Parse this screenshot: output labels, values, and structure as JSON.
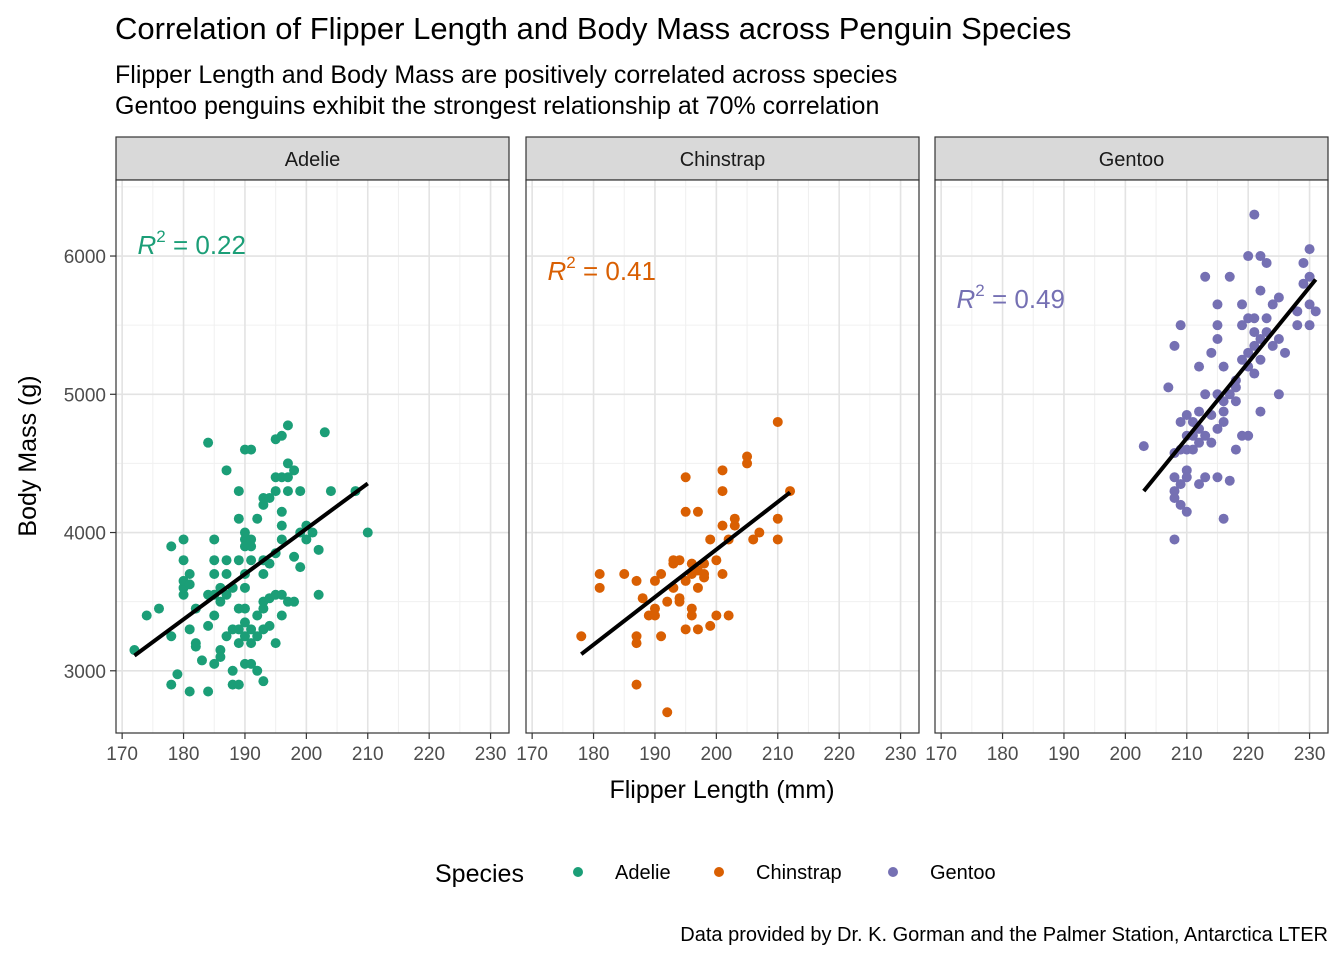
{
  "title": "Correlation of Flipper Length and Body Mass across Penguin Species",
  "subtitle_lines": [
    "Flipper Length and Body Mass are positively correlated across species",
    "Gentoo penguins exhibit the strongest relationship at 70% correlation"
  ],
  "caption": "Data provided by Dr. K. Gorman and the Palmer Station, Antarctica LTER",
  "chart_data": {
    "type": "scatter",
    "xlabel": "Flipper Length (mm)",
    "ylabel": "Body Mass (g)",
    "xlim": [
      169,
      233
    ],
    "ylim": [
      2550,
      6550
    ],
    "xticks": [
      170,
      180,
      190,
      200,
      210,
      220,
      230
    ],
    "yticks": [
      3000,
      4000,
      5000,
      6000
    ],
    "grid": true,
    "legend": {
      "title": "Species",
      "position": "bottom"
    },
    "facets": [
      {
        "name": "Adelie",
        "color": "#1b9e77",
        "r2_label": "R",
        "r2_value": " = 0.22",
        "r2_anchor": [
          172.5,
          6080
        ],
        "fit": {
          "x": [
            172,
            210
          ],
          "y": [
            3110,
            4355
          ]
        },
        "points": [
          [
            172,
            3150
          ],
          [
            174,
            3400
          ],
          [
            176,
            3450
          ],
          [
            178,
            3250
          ],
          [
            178,
            2900
          ],
          [
            178,
            3900
          ],
          [
            179,
            2975
          ],
          [
            180,
            3550
          ],
          [
            180,
            3600
          ],
          [
            180,
            3800
          ],
          [
            180,
            3950
          ],
          [
            180,
            3650
          ],
          [
            181,
            2850
          ],
          [
            181,
            3300
          ],
          [
            181,
            3625
          ],
          [
            181,
            3700
          ],
          [
            182,
            3200
          ],
          [
            182,
            3175
          ],
          [
            182,
            3450
          ],
          [
            183,
            3075
          ],
          [
            184,
            3325
          ],
          [
            184,
            3550
          ],
          [
            184,
            4650
          ],
          [
            184,
            2850
          ],
          [
            185,
            3400
          ],
          [
            185,
            3550
          ],
          [
            185,
            3700
          ],
          [
            185,
            3800
          ],
          [
            185,
            3950
          ],
          [
            185,
            3050
          ],
          [
            186,
            3150
          ],
          [
            186,
            3600
          ],
          [
            186,
            3500
          ],
          [
            186,
            3100
          ],
          [
            187,
            4450
          ],
          [
            187,
            3250
          ],
          [
            187,
            3700
          ],
          [
            187,
            3800
          ],
          [
            187,
            3550
          ],
          [
            188,
            3000
          ],
          [
            188,
            3300
          ],
          [
            188,
            2900
          ],
          [
            188,
            3600
          ],
          [
            189,
            4300
          ],
          [
            189,
            3200
          ],
          [
            189,
            2900
          ],
          [
            189,
            3300
          ],
          [
            189,
            3800
          ],
          [
            189,
            4100
          ],
          [
            189,
            3450
          ],
          [
            190,
            3250
          ],
          [
            190,
            3350
          ],
          [
            190,
            3600
          ],
          [
            190,
            3700
          ],
          [
            190,
            3950
          ],
          [
            190,
            4000
          ],
          [
            190,
            4600
          ],
          [
            190,
            3050
          ],
          [
            190,
            3900
          ],
          [
            190,
            3450
          ],
          [
            191,
            4600
          ],
          [
            191,
            3300
          ],
          [
            191,
            3950
          ],
          [
            191,
            3050
          ],
          [
            191,
            3800
          ],
          [
            191,
            3900
          ],
          [
            191,
            3200
          ],
          [
            192,
            3400
          ],
          [
            192,
            3250
          ],
          [
            192,
            3000
          ],
          [
            192,
            4100
          ],
          [
            193,
            3800
          ],
          [
            193,
            3500
          ],
          [
            193,
            3450
          ],
          [
            193,
            4200
          ],
          [
            193,
            2925
          ],
          [
            193,
            3700
          ],
          [
            193,
            4250
          ],
          [
            193,
            3300
          ],
          [
            194,
            3775
          ],
          [
            194,
            4250
          ],
          [
            194,
            3525
          ],
          [
            194,
            3325
          ],
          [
            195,
            3850
          ],
          [
            195,
            4300
          ],
          [
            195,
            3550
          ],
          [
            195,
            3200
          ],
          [
            195,
            4400
          ],
          [
            195,
            4675
          ],
          [
            196,
            4400
          ],
          [
            196,
            3950
          ],
          [
            196,
            3400
          ],
          [
            196,
            4050
          ],
          [
            196,
            4700
          ],
          [
            196,
            4150
          ],
          [
            196,
            3550
          ],
          [
            197,
            4500
          ],
          [
            197,
            4775
          ],
          [
            197,
            3500
          ],
          [
            197,
            4400
          ],
          [
            197,
            4300
          ],
          [
            198,
            4450
          ],
          [
            198,
            3500
          ],
          [
            198,
            3825
          ],
          [
            199,
            4300
          ],
          [
            199,
            3750
          ],
          [
            199,
            4000
          ],
          [
            200,
            4050
          ],
          [
            200,
            3950
          ],
          [
            201,
            4000
          ],
          [
            202,
            3875
          ],
          [
            202,
            3550
          ],
          [
            203,
            4725
          ],
          [
            204,
            4300
          ],
          [
            208,
            4300
          ],
          [
            210,
            4000
          ]
        ]
      },
      {
        "name": "Chinstrap",
        "color": "#d95f02",
        "r2_label": "R",
        "r2_value": " = 0.41",
        "r2_anchor": [
          172.5,
          5890
        ],
        "fit": {
          "x": [
            178,
            212
          ],
          "y": [
            3120,
            4290
          ]
        },
        "points": [
          [
            178,
            3250
          ],
          [
            181,
            3700
          ],
          [
            181,
            3600
          ],
          [
            185,
            3700
          ],
          [
            187,
            3650
          ],
          [
            187,
            3200
          ],
          [
            187,
            3250
          ],
          [
            187,
            2900
          ],
          [
            188,
            3525
          ],
          [
            189,
            3400
          ],
          [
            190,
            3650
          ],
          [
            190,
            3450
          ],
          [
            190,
            3400
          ],
          [
            191,
            3250
          ],
          [
            191,
            3700
          ],
          [
            192,
            3500
          ],
          [
            192,
            2700
          ],
          [
            193,
            3775
          ],
          [
            193,
            3600
          ],
          [
            193,
            3800
          ],
          [
            194,
            3500
          ],
          [
            194,
            3525
          ],
          [
            194,
            3800
          ],
          [
            195,
            4400
          ],
          [
            195,
            3650
          ],
          [
            195,
            4150
          ],
          [
            195,
            3300
          ],
          [
            196,
            3775
          ],
          [
            196,
            3450
          ],
          [
            196,
            3700
          ],
          [
            196,
            3400
          ],
          [
            197,
            4150
          ],
          [
            197,
            3300
          ],
          [
            197,
            3600
          ],
          [
            197,
            3725
          ],
          [
            198,
            3675
          ],
          [
            198,
            3775
          ],
          [
            198,
            3700
          ],
          [
            199,
            3325
          ],
          [
            199,
            3950
          ],
          [
            200,
            3400
          ],
          [
            200,
            3800
          ],
          [
            201,
            3700
          ],
          [
            201,
            4450
          ],
          [
            201,
            4300
          ],
          [
            201,
            4050
          ],
          [
            202,
            3400
          ],
          [
            202,
            3950
          ],
          [
            203,
            4050
          ],
          [
            203,
            4100
          ],
          [
            205,
            4550
          ],
          [
            205,
            4500
          ],
          [
            206,
            3950
          ],
          [
            207,
            4000
          ],
          [
            210,
            4800
          ],
          [
            210,
            4100
          ],
          [
            210,
            3950
          ],
          [
            212,
            4300
          ]
        ]
      },
      {
        "name": "Gentoo",
        "color": "#7570b3",
        "r2_label": "R",
        "r2_value": " = 0.49",
        "r2_anchor": [
          172.5,
          5690
        ],
        "fit": {
          "x": [
            203,
            231
          ],
          "y": [
            4300,
            5830
          ]
        },
        "points": [
          [
            203,
            4625
          ],
          [
            207,
            5050
          ],
          [
            208,
            5350
          ],
          [
            208,
            4575
          ],
          [
            208,
            4400
          ],
          [
            208,
            4250
          ],
          [
            208,
            4300
          ],
          [
            208,
            3950
          ],
          [
            209,
            5500
          ],
          [
            209,
            4800
          ],
          [
            209,
            4600
          ],
          [
            209,
            4350
          ],
          [
            209,
            4200
          ],
          [
            210,
            4850
          ],
          [
            210,
            4450
          ],
          [
            210,
            4600
          ],
          [
            210,
            4700
          ],
          [
            210,
            4150
          ],
          [
            210,
            4400
          ],
          [
            211,
            4800
          ],
          [
            211,
            4700
          ],
          [
            211,
            4600
          ],
          [
            212,
            5200
          ],
          [
            212,
            4875
          ],
          [
            212,
            4750
          ],
          [
            212,
            4650
          ],
          [
            212,
            4350
          ],
          [
            213,
            5850
          ],
          [
            213,
            5000
          ],
          [
            213,
            4400
          ],
          [
            213,
            4700
          ],
          [
            214,
            5300
          ],
          [
            214,
            4850
          ],
          [
            214,
            4650
          ],
          [
            215,
            5650
          ],
          [
            215,
            5500
          ],
          [
            215,
            5400
          ],
          [
            215,
            5000
          ],
          [
            215,
            4750
          ],
          [
            215,
            4400
          ],
          [
            216,
            5200
          ],
          [
            216,
            4950
          ],
          [
            216,
            4875
          ],
          [
            216,
            4100
          ],
          [
            216,
            4800
          ],
          [
            217,
            5850
          ],
          [
            217,
            5000
          ],
          [
            217,
            4375
          ],
          [
            218,
            5100
          ],
          [
            218,
            5050
          ],
          [
            218,
            4950
          ],
          [
            218,
            4600
          ],
          [
            219,
            5650
          ],
          [
            219,
            5500
          ],
          [
            219,
            5250
          ],
          [
            219,
            4700
          ],
          [
            220,
            6000
          ],
          [
            220,
            5550
          ],
          [
            220,
            5300
          ],
          [
            220,
            5200
          ],
          [
            220,
            4700
          ],
          [
            221,
            6300
          ],
          [
            221,
            5550
          ],
          [
            221,
            5450
          ],
          [
            221,
            5350
          ],
          [
            221,
            5150
          ],
          [
            222,
            6000
          ],
          [
            222,
            5750
          ],
          [
            222,
            5400
          ],
          [
            222,
            5250
          ],
          [
            222,
            4875
          ],
          [
            223,
            5950
          ],
          [
            223,
            5550
          ],
          [
            223,
            5450
          ],
          [
            224,
            5650
          ],
          [
            224,
            5350
          ],
          [
            225,
            5700
          ],
          [
            225,
            5400
          ],
          [
            225,
            5000
          ],
          [
            226,
            5300
          ],
          [
            228,
            5600
          ],
          [
            228,
            5500
          ],
          [
            229,
            5950
          ],
          [
            229,
            5800
          ],
          [
            230,
            6050
          ],
          [
            230,
            5850
          ],
          [
            230,
            5650
          ],
          [
            230,
            5500
          ],
          [
            231,
            5600
          ]
        ]
      }
    ]
  }
}
